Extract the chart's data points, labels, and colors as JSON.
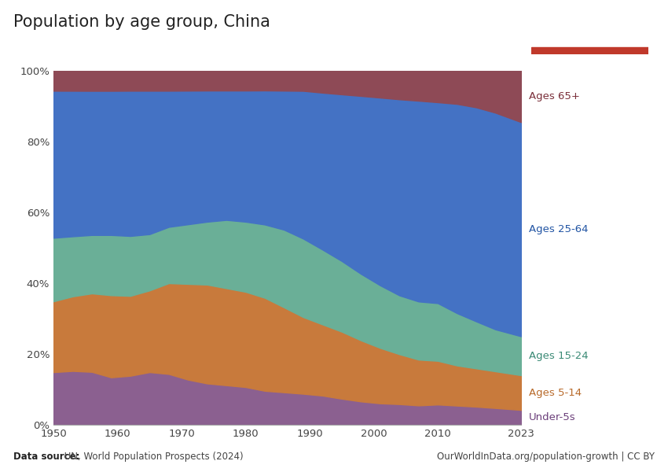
{
  "title": "Population by age group, China",
  "years": [
    1950,
    1953,
    1956,
    1959,
    1962,
    1965,
    1968,
    1971,
    1974,
    1977,
    1980,
    1983,
    1986,
    1989,
    1992,
    1995,
    1998,
    2001,
    2004,
    2007,
    2010,
    2013,
    2016,
    2019,
    2023
  ],
  "under5": [
    14.5,
    14.8,
    14.5,
    13.0,
    13.5,
    14.5,
    14.0,
    12.5,
    11.5,
    11.0,
    10.5,
    9.5,
    9.0,
    8.5,
    8.0,
    7.2,
    6.5,
    6.0,
    5.8,
    5.5,
    5.8,
    5.5,
    5.2,
    4.8,
    4.2
  ],
  "ages5_14": [
    19.5,
    20.5,
    21.5,
    22.5,
    22.0,
    22.5,
    25.0,
    26.5,
    27.5,
    27.0,
    26.5,
    26.0,
    23.5,
    21.0,
    19.5,
    18.5,
    17.0,
    15.5,
    14.0,
    13.0,
    12.5,
    11.5,
    11.0,
    10.5,
    9.8
  ],
  "ages15_24": [
    17.5,
    16.5,
    16.0,
    16.5,
    16.5,
    15.5,
    15.5,
    16.5,
    17.5,
    19.0,
    19.5,
    20.5,
    21.5,
    21.5,
    20.5,
    19.5,
    18.5,
    17.5,
    16.5,
    16.5,
    16.5,
    15.0,
    13.5,
    12.0,
    11.0
  ],
  "ages25_64": [
    40.5,
    40.0,
    39.5,
    39.5,
    40.0,
    39.5,
    37.5,
    37.0,
    36.5,
    36.0,
    36.5,
    37.5,
    38.5,
    40.5,
    43.0,
    46.0,
    49.5,
    52.5,
    55.0,
    57.0,
    57.5,
    60.0,
    61.5,
    62.0,
    60.5
  ],
  "ages65plus": [
    5.5,
    5.5,
    5.5,
    5.5,
    5.5,
    5.5,
    5.5,
    5.5,
    5.5,
    5.5,
    5.5,
    5.5,
    5.5,
    5.5,
    6.0,
    6.5,
    7.0,
    7.5,
    8.0,
    8.5,
    9.0,
    9.5,
    10.5,
    12.0,
    14.5
  ],
  "colors": {
    "under5": "#8B6090",
    "ages5_14": "#C87A3C",
    "ages15_24": "#6AAF97",
    "ages25_64": "#4472C4",
    "ages65plus": "#8E4A56"
  },
  "labels": {
    "under5": "Under-5s",
    "ages5_14": "Ages 5-14",
    "ages15_24": "Ages 15-24",
    "ages25_64": "Ages 25-64",
    "ages65plus": "Ages 65+"
  },
  "label_colors": {
    "under5": "#6B3F7A",
    "ages5_14": "#B86A2A",
    "ages15_24": "#3A8A75",
    "ages25_64": "#2255A4",
    "ages65plus": "#7A2F3A"
  },
  "datasource_bold": "Data source:",
  "datasource_rest": " UN, World Population Prospects (2024)",
  "owid_url": "OurWorldInData.org/population-growth | CC BY",
  "background_color": "#ffffff",
  "logo_bg": "#1a3a5c",
  "logo_red": "#c0392b"
}
